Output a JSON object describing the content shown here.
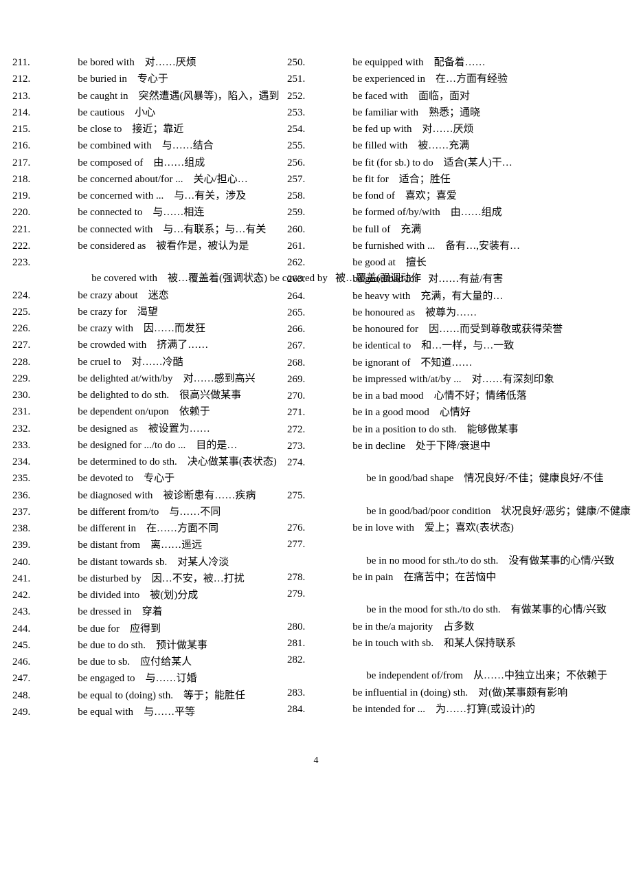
{
  "page_number": "4",
  "left": [
    {
      "n": "211.",
      "p": "be bored with",
      "t": "对……厌烦"
    },
    {
      "n": "212.",
      "p": "be buried in",
      "t": "专心于"
    },
    {
      "n": "213.",
      "p": "be caught in",
      "t": "突然遭遇(风暴等)，陷入，遇到"
    },
    {
      "n": "214.",
      "p": "be cautious",
      "t": "小心"
    },
    {
      "n": "215.",
      "p": "be close to",
      "t": "接近；靠近"
    },
    {
      "n": "216.",
      "p": "be combined with",
      "t": "与……结合"
    },
    {
      "n": "217.",
      "p": "be composed of",
      "t": "由……组成"
    },
    {
      "n": "218.",
      "p": "be concerned about/for ...",
      "t": "关心/担心…"
    },
    {
      "n": "219.",
      "p": "be concerned with ...",
      "t": "与…有关，涉及"
    },
    {
      "n": "220.",
      "p": "be connected to",
      "t": "与……相连"
    },
    {
      "n": "221.",
      "p": "be connected with",
      "t": "与…有联系；与…有关"
    },
    {
      "n": "222.",
      "p": "be considered as",
      "t": "被看作是，被认为是"
    },
    {
      "n": "223.",
      "p": "be covered with",
      "t": "被…覆盖着(强调状态) be covered by   被…覆盖(强调动作"
    },
    {
      "n": "224.",
      "p": "be crazy about",
      "t": "迷恋"
    },
    {
      "n": "225.",
      "p": "be crazy for",
      "t": "渴望"
    },
    {
      "n": "226.",
      "p": "be crazy with",
      "t": "因……而发狂"
    },
    {
      "n": "227.",
      "p": "be crowded with",
      "t": "挤满了……"
    },
    {
      "n": "228.",
      "p": "be cruel to",
      "t": "对……冷酷"
    },
    {
      "n": "229.",
      "p": "be delighted at/with/by",
      "t": "对……感到高兴"
    },
    {
      "n": "230.",
      "p": "be delighted to do sth.",
      "t": "很高兴做某事"
    },
    {
      "n": "231.",
      "p": "be dependent on/upon",
      "t": "依赖于"
    },
    {
      "n": "232.",
      "p": "be designed as",
      "t": "被设置为……"
    },
    {
      "n": "233.",
      "p": "be designed for .../to do ...",
      "t": "目的是…"
    },
    {
      "n": "234.",
      "p": "be determined to do sth.",
      "t": "决心做某事(表状态)"
    },
    {
      "n": "235.",
      "p": "be devoted to",
      "t": "专心于"
    },
    {
      "n": "236.",
      "p": "be diagnosed with",
      "t": "被诊断患有……疾病"
    },
    {
      "n": "237.",
      "p": "be different from/to",
      "t": "与……不同"
    },
    {
      "n": "238.",
      "p": "be different in",
      "t": "在……方面不同"
    },
    {
      "n": "239.",
      "p": "be distant from",
      "t": "离……遥远"
    },
    {
      "n": "240.",
      "p": "be distant towards sb.",
      "t": "对某人冷淡"
    },
    {
      "n": "241.",
      "p": "be disturbed by",
      "t": "因…不安，被…打扰"
    },
    {
      "n": "242.",
      "p": "be divided into",
      "t": "被(划)分成"
    },
    {
      "n": "243.",
      "p": "be dressed in",
      "t": "穿着"
    },
    {
      "n": "244.",
      "p": "be due for",
      "t": "应得到"
    },
    {
      "n": "245.",
      "p": "be due to do sth.",
      "t": "预计做某事"
    },
    {
      "n": "246.",
      "p": "be due to sb.",
      "t": "应付给某人"
    },
    {
      "n": "247.",
      "p": "be engaged to",
      "t": "与……订婚"
    },
    {
      "n": "248.",
      "p": "be equal to (doing) sth.",
      "t": "等于；能胜任"
    },
    {
      "n": "249.",
      "p": "be equal with",
      "t": "与……平等"
    }
  ],
  "right": [
    {
      "n": "250.",
      "p": "be equipped with",
      "t": "配备着……"
    },
    {
      "n": "251.",
      "p": "be experienced in",
      "t": "在…方面有经验"
    },
    {
      "n": "252.",
      "p": "be faced with",
      "t": "面临，面对"
    },
    {
      "n": "253.",
      "p": "be familiar with",
      "t": "熟悉；通晓"
    },
    {
      "n": "254.",
      "p": "be fed up with",
      "t": "对……厌烦"
    },
    {
      "n": "255.",
      "p": "be filled with",
      "t": "被……充满"
    },
    {
      "n": "256.",
      "p": "be fit (for sb.) to do",
      "t": "适合(某人)干…"
    },
    {
      "n": "257.",
      "p": "be fit for",
      "t": "适合；胜任"
    },
    {
      "n": "258.",
      "p": "be fond of",
      "t": "喜欢；喜爱"
    },
    {
      "n": "259.",
      "p": "be formed of/by/with",
      "t": "由……组成"
    },
    {
      "n": "260.",
      "p": "be full of",
      "t": "充满"
    },
    {
      "n": "261.",
      "p": "be furnished with ...",
      "t": "备有…,安装有…"
    },
    {
      "n": "262.",
      "p": "be good at",
      "t": "擅长"
    },
    {
      "n": "263.",
      "p": "be good/bad for",
      "t": "对……有益/有害"
    },
    {
      "n": "264.",
      "p": "be heavy with",
      "t": "充满，有大量的…"
    },
    {
      "n": "265.",
      "p": "be honoured as",
      "t": "被尊为……"
    },
    {
      "n": "266.",
      "p": "be honoured for",
      "t": "因……而受到尊敬或获得荣誉"
    },
    {
      "n": "267.",
      "p": "be identical to",
      "t": "和…一样，与…一致"
    },
    {
      "n": "268.",
      "p": "be ignorant of",
      "t": "不知道……"
    },
    {
      "n": "269.",
      "p": "be impressed with/at/by ...",
      "t": "对……有深刻印象"
    },
    {
      "n": "270.",
      "p": "be in a bad mood",
      "t": "心情不好；情绪低落"
    },
    {
      "n": "271.",
      "p": "be in a good mood",
      "t": "心情好"
    },
    {
      "n": "272.",
      "p": "be in a position to do sth.",
      "t": "能够做某事"
    },
    {
      "n": "273.",
      "p": "be in decline",
      "t": "处于下降/衰退中"
    },
    {
      "n": "274.",
      "p": "be in good/bad shape",
      "t": "情况良好/不佳；健康良好/不佳"
    },
    {
      "n": "275.",
      "p": "be in good/bad/poor condition",
      "t": "状况良好/恶劣；健康/不健康"
    },
    {
      "n": "276.",
      "p": "be in love with",
      "t": "爱上；喜欢(表状态)"
    },
    {
      "n": "277.",
      "p": "be in no mood for sth./to do sth.",
      "t": "没有做某事的心情/兴致"
    },
    {
      "n": "278.",
      "p": "be in pain",
      "t": "在痛苦中；在苦恼中"
    },
    {
      "n": "279.",
      "p": "be in the mood for sth./to do sth.",
      "t": "有做某事的心情/兴致"
    },
    {
      "n": "280.",
      "p": "be in the/a majority",
      "t": "占多数"
    },
    {
      "n": "281.",
      "p": "be in touch with sb.",
      "t": "和某人保持联系"
    },
    {
      "n": "282.",
      "p": "be independent of/from",
      "t": "从……中独立出来；不依赖于"
    },
    {
      "n": "283.",
      "p": "be influential in (doing) sth.",
      "t": "对(做)某事颇有影响"
    },
    {
      "n": "284.",
      "p": "be intended for ...",
      "t": "为……打算(或设计)的"
    }
  ]
}
